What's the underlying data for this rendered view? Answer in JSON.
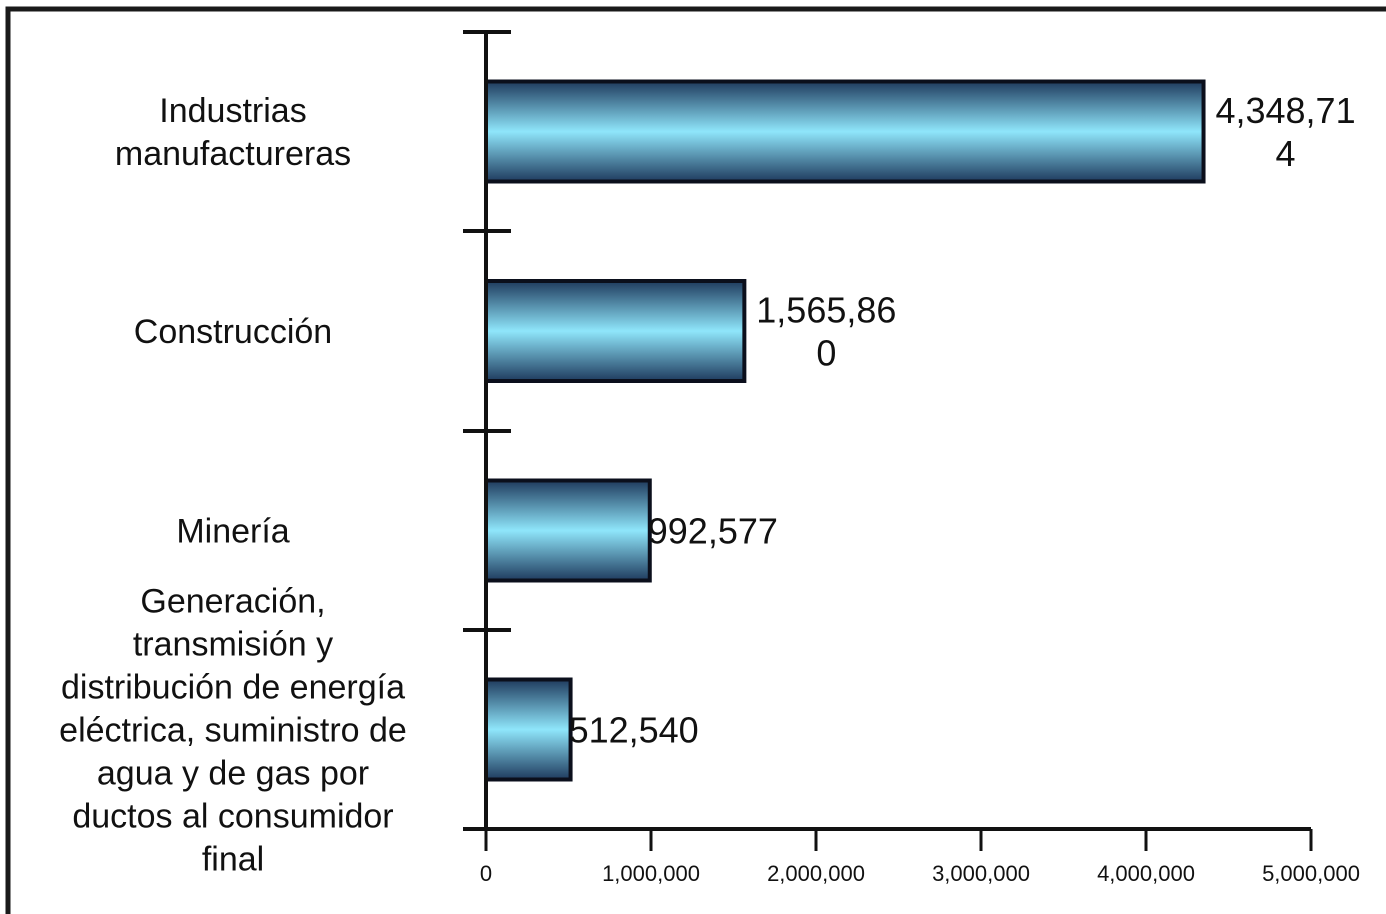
{
  "chart_data": {
    "type": "bar",
    "orientation": "horizontal",
    "categories": [
      "Industrias manufactureras",
      "Construcción",
      "Minería",
      "Generación, transmisión y distribución de energía eléctrica, suministro de agua y de gas por ductos al consumidor final"
    ],
    "category_lines": [
      [
        "Industrias",
        "manufactureras"
      ],
      [
        "Construcción"
      ],
      [
        "Minería"
      ],
      [
        "Generación,",
        "transmisión y",
        "distribución de energía",
        "eléctrica, suministro de",
        "agua y de gas por",
        "ductos al consumidor",
        "final"
      ]
    ],
    "values": [
      4348714,
      1565860,
      992577,
      512540
    ],
    "data_label_lines": [
      [
        "4,348,71",
        "4"
      ],
      [
        "1,565,86",
        "0"
      ],
      [
        "992,577"
      ],
      [
        "512,540"
      ]
    ],
    "x_ticks": [
      0,
      1000000,
      2000000,
      3000000,
      4000000,
      5000000
    ],
    "x_tick_labels": [
      "0",
      "1,000,000",
      "2,000,000",
      "3,000,000",
      "4,000,000",
      "5,000,000"
    ],
    "xlim": [
      0,
      5000000
    ],
    "title": "",
    "xlabel": "",
    "ylabel": "",
    "grid": false,
    "legend": "none",
    "colors": {
      "bar_center": "#8fe6fb",
      "bar_edge": "#1f3b5e",
      "bar_outline": "#0b0f1c",
      "axis": "#111111",
      "frame": "#1a1a1a"
    }
  }
}
